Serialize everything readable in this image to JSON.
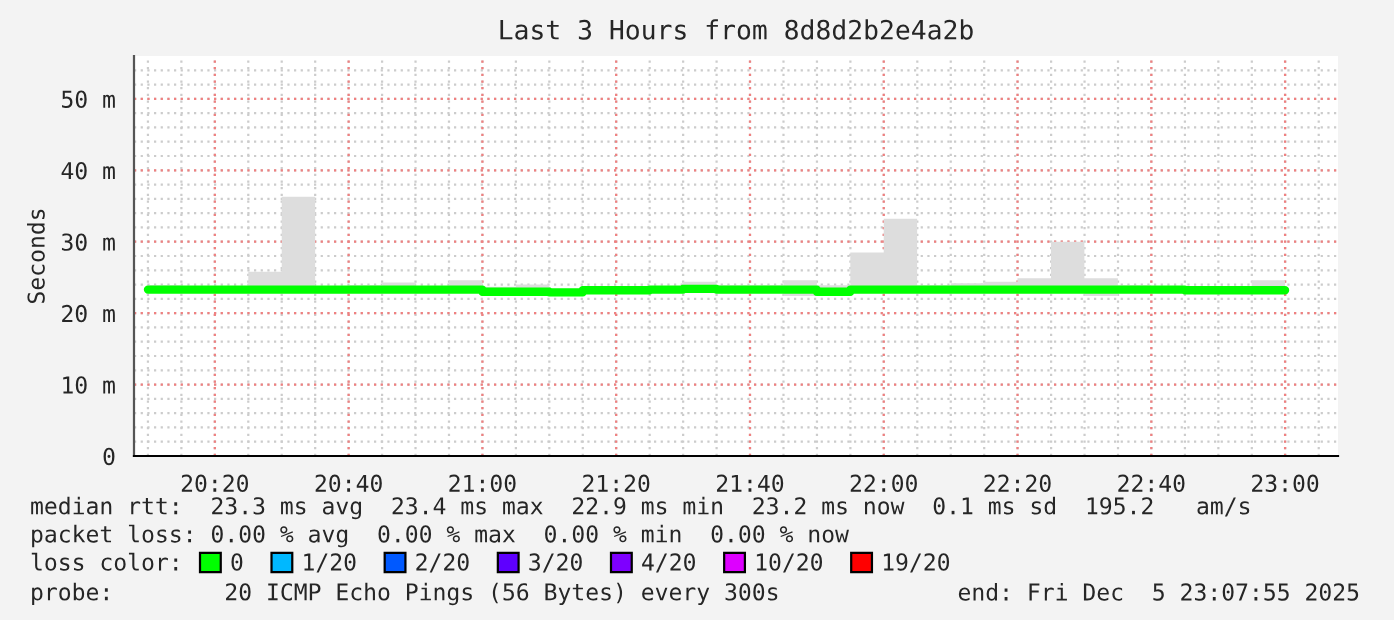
{
  "chart_data": {
    "type": "step",
    "title": "Last 3 Hours from 8d8d2b2e4a2b",
    "ylabel": "Seconds",
    "legend_title": "loss color:",
    "x": [
      20.1667,
      20.25,
      20.3333,
      20.4167,
      20.5,
      20.5833,
      20.6667,
      20.75,
      20.8333,
      20.9167,
      21.0,
      21.0833,
      21.1667,
      21.25,
      21.3333,
      21.4167,
      21.5,
      21.5833,
      21.6667,
      21.75,
      21.8333,
      21.9167,
      22.0,
      22.0833,
      22.1667,
      22.25,
      22.3333,
      22.4167,
      22.5,
      22.5833,
      22.6667,
      22.75,
      22.8333,
      22.9167,
      23.0
    ],
    "series": [
      {
        "name": "0",
        "color": "#00ff00",
        "values": [
          23.3,
          23.3,
          23.3,
          23.3,
          23.3,
          23.3,
          23.3,
          23.3,
          23.3,
          23.3,
          23.3,
          23.0,
          23.0,
          22.9,
          23.2,
          23.2,
          23.3,
          23.4,
          23.3,
          23.3,
          23.3,
          23.0,
          23.3,
          23.3,
          23.3,
          23.3,
          23.3,
          23.3,
          23.3,
          23.3,
          23.3,
          23.3,
          23.2,
          23.2,
          23.2
        ],
        "lower": [
          23.0,
          23.0,
          23.0,
          23.0,
          23.0,
          23.0,
          22.8,
          23.0,
          23.0,
          23.0,
          23.0,
          22.5,
          22.6,
          22.7,
          23.0,
          23.0,
          23.0,
          23.0,
          22.8,
          23.0,
          22.4,
          22.8,
          23.0,
          23.0,
          23.0,
          23.0,
          23.0,
          23.0,
          23.0,
          22.4,
          23.0,
          23.0,
          23.0,
          23.0,
          23.0
        ],
        "upper": [
          26.9,
          23.9,
          23.5,
          23.5,
          25.8,
          36.3,
          23.8,
          23.9,
          24.3,
          23.6,
          24.6,
          23.7,
          24.0,
          23.4,
          23.5,
          23.4,
          23.6,
          24.4,
          23.9,
          23.9,
          24.6,
          23.9,
          28.5,
          33.2,
          23.9,
          24.2,
          24.4,
          24.9,
          30.0,
          24.9,
          23.9,
          23.6,
          23.5,
          23.5,
          24.6
        ]
      },
      {
        "name": "1/20",
        "color": "#00b8ff",
        "values": [
          null,
          null,
          null,
          null,
          null,
          null,
          null,
          null,
          null,
          null,
          null,
          null,
          null,
          null,
          null,
          null,
          null,
          null,
          null,
          null,
          null,
          null,
          null,
          null,
          null,
          null,
          null,
          null,
          null,
          null,
          null,
          null,
          null,
          null,
          null
        ]
      },
      {
        "name": "2/20",
        "color": "#0059ff",
        "values": [
          null,
          null,
          null,
          null,
          null,
          null,
          null,
          null,
          null,
          null,
          null,
          null,
          null,
          null,
          null,
          null,
          null,
          null,
          null,
          null,
          null,
          null,
          null,
          null,
          null,
          null,
          null,
          null,
          null,
          null,
          null,
          null,
          null,
          null,
          null
        ]
      },
      {
        "name": "3/20",
        "color": "#5e00ff",
        "values": [
          null,
          null,
          null,
          null,
          null,
          null,
          null,
          null,
          null,
          null,
          null,
          null,
          null,
          null,
          null,
          null,
          null,
          null,
          null,
          null,
          null,
          null,
          null,
          null,
          null,
          null,
          null,
          null,
          null,
          null,
          null,
          null,
          null,
          null,
          null
        ]
      },
      {
        "name": "4/20",
        "color": "#7e00ff",
        "values": [
          null,
          null,
          null,
          null,
          null,
          null,
          null,
          null,
          null,
          null,
          null,
          null,
          null,
          null,
          null,
          null,
          null,
          null,
          null,
          null,
          null,
          null,
          null,
          null,
          null,
          null,
          null,
          null,
          null,
          null,
          null,
          null,
          null,
          null,
          null
        ]
      },
      {
        "name": "10/20",
        "color": "#dd00ff",
        "values": [
          null,
          null,
          null,
          null,
          null,
          null,
          null,
          null,
          null,
          null,
          null,
          null,
          null,
          null,
          null,
          null,
          null,
          null,
          null,
          null,
          null,
          null,
          null,
          null,
          null,
          null,
          null,
          null,
          null,
          null,
          null,
          null,
          null,
          null,
          null
        ]
      },
      {
        "name": "19/20",
        "color": "#ff0000",
        "values": [
          null,
          null,
          null,
          null,
          null,
          null,
          null,
          null,
          null,
          null,
          null,
          null,
          null,
          null,
          null,
          null,
          null,
          null,
          null,
          null,
          null,
          null,
          null,
          null,
          null,
          null,
          null,
          null,
          null,
          null,
          null,
          null,
          null,
          null,
          null
        ]
      }
    ],
    "xlim": [
      20.1319,
      23.1319
    ],
    "xticks": [
      {
        "value": 20.3333,
        "label": "20:20"
      },
      {
        "value": 20.6667,
        "label": "20:40"
      },
      {
        "value": 21.0,
        "label": "21:00"
      },
      {
        "value": 21.3333,
        "label": "21:20"
      },
      {
        "value": 21.6667,
        "label": "21:40"
      },
      {
        "value": 22.0,
        "label": "22:00"
      },
      {
        "value": 22.3333,
        "label": "22:20"
      },
      {
        "value": 22.6667,
        "label": "22:40"
      },
      {
        "value": 23.0,
        "label": "23:00"
      }
    ],
    "ylim": [
      0,
      56
    ],
    "yticks": [
      0,
      {
        "value": 10,
        "label": "10 m"
      },
      {
        "value": 20,
        "label": "20 m"
      },
      {
        "value": 30,
        "label": "30 m"
      },
      {
        "value": 40,
        "label": "40 m"
      },
      {
        "value": 50,
        "label": "50 m"
      }
    ],
    "grid": true,
    "legend": "bottom",
    "annotations": [
      "median rtt:  23.3 ms avg  23.4 ms max  22.9 ms min  23.2 ms now  0.1 ms sd  195.2   am/s",
      "packet loss: 0.00 % avg  0.00 % max  0.00 % min  0.00 % now",
      "probe:        20 ICMP Echo Pings (56 Bytes) every 300s",
      "end: Fri Dec  5 23:07:55 2025"
    ]
  }
}
